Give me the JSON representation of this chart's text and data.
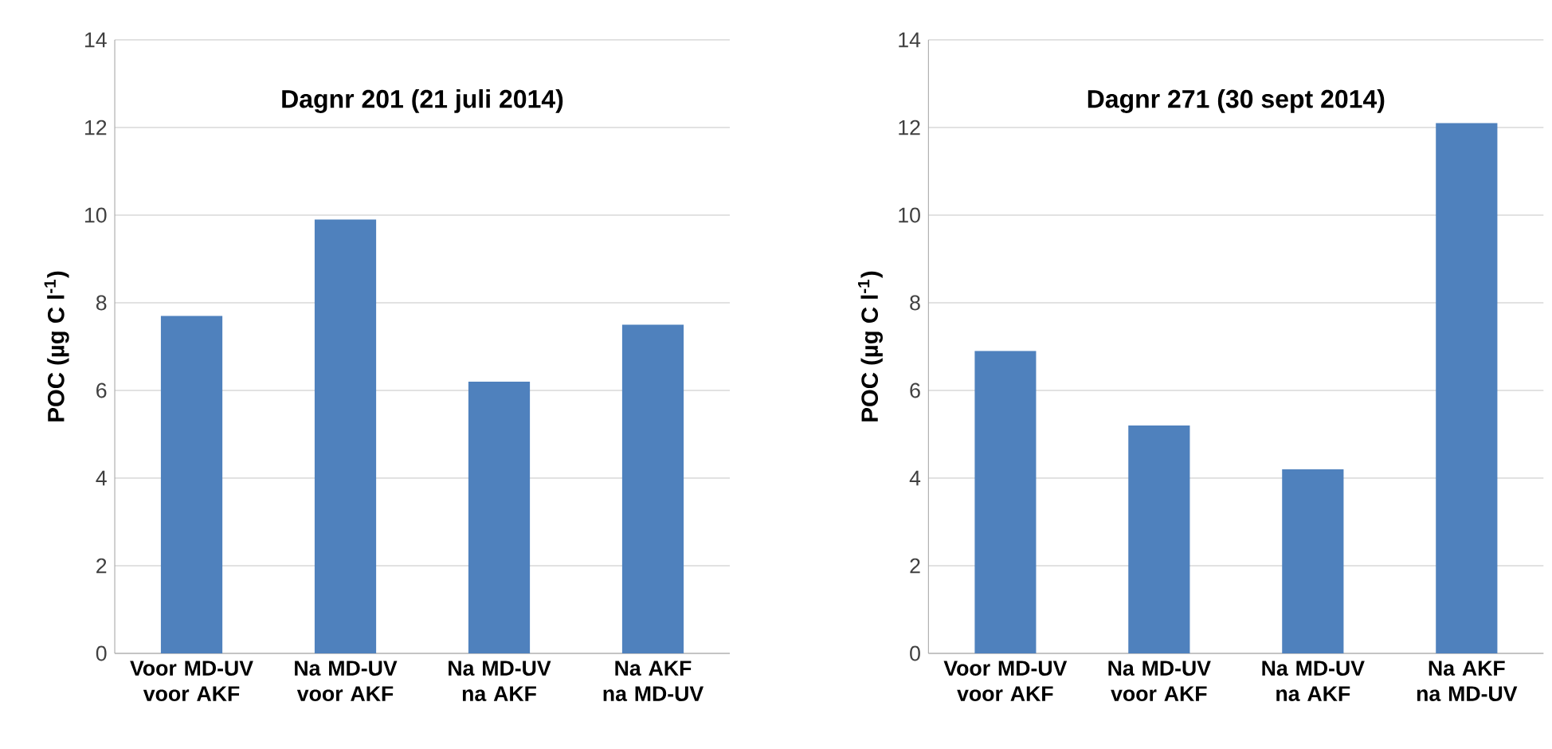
{
  "chart_data": [
    {
      "type": "bar",
      "title": "Dagnr 201 (21 juli 2014)",
      "ylabel": "POC (µg C l$^{-1}$)",
      "categories": [
        "Voor MD-UV voor AKF",
        "Na MD-UV voor AKF",
        "Na MD-UV na AKF",
        "Na AKF na MD-UV"
      ],
      "values": [
        7.7,
        9.9,
        6.2,
        7.5
      ],
      "color": "#4f81bd",
      "ylim": [
        0,
        14
      ],
      "yticks": [
        0,
        2,
        4,
        6,
        8,
        10,
        12,
        14
      ],
      "grid": "y"
    },
    {
      "type": "bar",
      "title": "Dagnr 271 (30 sept 2014)",
      "ylabel": "POC (µg C l$^{-1}$)",
      "categories": [
        "Voor MD-UV voor AKF",
        "Na MD-UV voor AKF",
        "Na MD-UV na AKF",
        "Na AKF na MD-UV"
      ],
      "values": [
        6.9,
        5.2,
        4.2,
        12.1
      ],
      "color": "#4f81bd",
      "ylim": [
        0,
        14
      ],
      "yticks": [
        0,
        2,
        4,
        6,
        8,
        10,
        12,
        14
      ],
      "grid": "y"
    }
  ]
}
